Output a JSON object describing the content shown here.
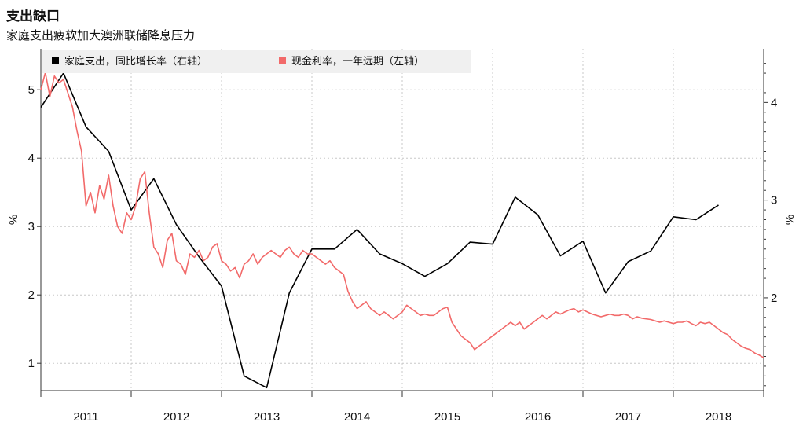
{
  "header": {
    "title": "支出缺口",
    "subtitle": "家庭支出疲软加大澳洲联储降息压力"
  },
  "chart_data": {
    "type": "line",
    "legend": [
      {
        "label": "家庭支出，同比增长率（右轴）",
        "color": "#000000"
      },
      {
        "label": "现金利率，一年远期（左轴）",
        "color": "#f26a6a"
      }
    ],
    "x_ticks": [
      "2011",
      "2012",
      "2013",
      "2014",
      "2015",
      "2016",
      "2017",
      "2018"
    ],
    "xlim": [
      2011.0,
      2019.0
    ],
    "left_axis": {
      "label": "%",
      "ticks": [
        "1",
        "2",
        "3",
        "4",
        "5"
      ],
      "ylim": [
        0.6,
        5.6
      ]
    },
    "right_axis": {
      "label": "%",
      "ticks": [
        "2",
        "3",
        "4"
      ],
      "ylim": [
        1.05,
        4.55
      ]
    },
    "grid": true,
    "series": [
      {
        "name": "家庭支出，同比增长率（右轴）",
        "axis": "right",
        "color": "#000000",
        "x": [
          2011.0,
          2011.25,
          2011.5,
          2011.75,
          2012.0,
          2012.25,
          2012.5,
          2012.75,
          2013.0,
          2013.25,
          2013.5,
          2013.75,
          2014.0,
          2014.25,
          2014.5,
          2014.75,
          2015.0,
          2015.25,
          2015.5,
          2015.75,
          2016.0,
          2016.25,
          2016.5,
          2016.75,
          2017.0,
          2017.25,
          2017.5,
          2017.75,
          2018.0,
          2018.25,
          2018.5
        ],
        "y": [
          3.95,
          4.3,
          3.75,
          3.5,
          2.9,
          3.22,
          2.75,
          2.42,
          2.12,
          1.2,
          1.08,
          2.05,
          2.5,
          2.5,
          2.7,
          2.45,
          2.35,
          2.22,
          2.35,
          2.57,
          2.55,
          3.03,
          2.85,
          2.43,
          2.58,
          2.05,
          2.37,
          2.48,
          2.83,
          2.8,
          2.95
        ]
      },
      {
        "name": "现金利率，一年远期（左轴）",
        "axis": "left",
        "color": "#f26a6a",
        "x": [
          2011.0,
          2011.05,
          2011.1,
          2011.15,
          2011.2,
          2011.25,
          2011.3,
          2011.35,
          2011.4,
          2011.45,
          2011.5,
          2011.55,
          2011.6,
          2011.65,
          2011.7,
          2011.75,
          2011.8,
          2011.85,
          2011.9,
          2011.95,
          2012.0,
          2012.05,
          2012.1,
          2012.15,
          2012.2,
          2012.25,
          2012.3,
          2012.35,
          2012.4,
          2012.45,
          2012.5,
          2012.55,
          2012.6,
          2012.65,
          2012.7,
          2012.75,
          2012.8,
          2012.85,
          2012.9,
          2012.95,
          2013.0,
          2013.05,
          2013.1,
          2013.15,
          2013.2,
          2013.25,
          2013.3,
          2013.35,
          2013.4,
          2013.45,
          2013.5,
          2013.55,
          2013.6,
          2013.65,
          2013.7,
          2013.75,
          2013.8,
          2013.85,
          2013.9,
          2013.95,
          2014.0,
          2014.05,
          2014.1,
          2014.15,
          2014.2,
          2014.25,
          2014.3,
          2014.35,
          2014.4,
          2014.45,
          2014.5,
          2014.55,
          2014.6,
          2014.65,
          2014.7,
          2014.75,
          2014.8,
          2014.85,
          2014.9,
          2014.95,
          2015.0,
          2015.05,
          2015.1,
          2015.15,
          2015.2,
          2015.25,
          2015.3,
          2015.35,
          2015.4,
          2015.45,
          2015.5,
          2015.55,
          2015.6,
          2015.65,
          2015.7,
          2015.75,
          2015.8,
          2015.85,
          2015.9,
          2015.95,
          2016.0,
          2016.05,
          2016.1,
          2016.15,
          2016.2,
          2016.25,
          2016.3,
          2016.35,
          2016.4,
          2016.45,
          2016.5,
          2016.55,
          2016.6,
          2016.65,
          2016.7,
          2016.75,
          2016.8,
          2016.85,
          2016.9,
          2016.95,
          2017.0,
          2017.05,
          2017.1,
          2017.15,
          2017.2,
          2017.25,
          2017.3,
          2017.35,
          2017.4,
          2017.45,
          2017.5,
          2017.55,
          2017.6,
          2017.65,
          2017.7,
          2017.75,
          2017.8,
          2017.85,
          2017.9,
          2017.95,
          2018.0,
          2018.05,
          2018.1,
          2018.15,
          2018.2,
          2018.25,
          2018.3,
          2018.35,
          2018.4,
          2018.45,
          2018.5,
          2018.55,
          2018.6,
          2018.65,
          2018.7,
          2018.75,
          2018.8,
          2018.85,
          2018.9,
          2018.95,
          2019.0
        ],
        "y": [
          5.0,
          5.25,
          4.9,
          5.2,
          5.1,
          5.15,
          4.95,
          4.75,
          4.4,
          4.1,
          3.3,
          3.5,
          3.2,
          3.6,
          3.4,
          3.75,
          3.3,
          3.0,
          2.9,
          3.2,
          3.1,
          3.3,
          3.7,
          3.8,
          3.2,
          2.7,
          2.6,
          2.4,
          2.8,
          2.9,
          2.5,
          2.45,
          2.3,
          2.6,
          2.55,
          2.65,
          2.5,
          2.55,
          2.7,
          2.75,
          2.5,
          2.45,
          2.35,
          2.4,
          2.25,
          2.45,
          2.5,
          2.6,
          2.45,
          2.55,
          2.6,
          2.65,
          2.6,
          2.55,
          2.65,
          2.7,
          2.6,
          2.55,
          2.65,
          2.6,
          2.6,
          2.55,
          2.5,
          2.45,
          2.5,
          2.4,
          2.35,
          2.3,
          2.05,
          1.9,
          1.8,
          1.85,
          1.9,
          1.8,
          1.75,
          1.7,
          1.75,
          1.7,
          1.65,
          1.7,
          1.75,
          1.85,
          1.8,
          1.75,
          1.7,
          1.72,
          1.7,
          1.7,
          1.75,
          1.8,
          1.82,
          1.6,
          1.5,
          1.4,
          1.35,
          1.3,
          1.2,
          1.25,
          1.3,
          1.35,
          1.4,
          1.45,
          1.5,
          1.55,
          1.6,
          1.55,
          1.6,
          1.5,
          1.55,
          1.6,
          1.65,
          1.7,
          1.65,
          1.7,
          1.75,
          1.72,
          1.75,
          1.78,
          1.8,
          1.75,
          1.78,
          1.75,
          1.72,
          1.7,
          1.68,
          1.7,
          1.72,
          1.7,
          1.7,
          1.72,
          1.7,
          1.65,
          1.68,
          1.66,
          1.65,
          1.64,
          1.62,
          1.6,
          1.62,
          1.6,
          1.58,
          1.6,
          1.6,
          1.62,
          1.58,
          1.55,
          1.6,
          1.58,
          1.6,
          1.55,
          1.5,
          1.45,
          1.42,
          1.35,
          1.3,
          1.25,
          1.22,
          1.2,
          1.15,
          1.12,
          1.08
        ]
      }
    ]
  }
}
